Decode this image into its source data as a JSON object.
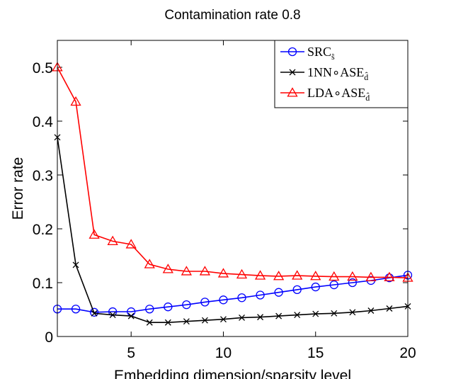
{
  "chart_data": {
    "type": "line",
    "title": "Contamination rate 0.8",
    "xlabel": "Embedding dimension/sparsity level",
    "ylabel": "Error rate",
    "xlim": [
      1,
      20
    ],
    "ylim": [
      0,
      0.55
    ],
    "xticks": [
      5,
      10,
      15,
      20
    ],
    "yticks": [
      0,
      0.1,
      0.2,
      0.3,
      0.4,
      0.5
    ],
    "xtick_labels": [
      "5",
      "10",
      "15",
      "20"
    ],
    "ytick_labels": [
      "0",
      "0.1",
      "0.2",
      "0.3",
      "0.4",
      "0.5"
    ],
    "grid": false,
    "legend_position": "top-right",
    "x": [
      1,
      2,
      3,
      4,
      5,
      6,
      7,
      8,
      9,
      10,
      11,
      12,
      13,
      14,
      15,
      16,
      17,
      18,
      19,
      20
    ],
    "series": [
      {
        "name": "SRC",
        "name_sub": "ŝ",
        "color": "#0000ff",
        "marker": "circle",
        "values": [
          0.051,
          0.051,
          0.045,
          0.046,
          0.046,
          0.051,
          0.055,
          0.059,
          0.064,
          0.068,
          0.072,
          0.077,
          0.082,
          0.087,
          0.092,
          0.096,
          0.1,
          0.104,
          0.109,
          0.114
        ]
      },
      {
        "name": "1NN∘ASE",
        "name_sub": "d̂",
        "color": "#000000",
        "marker": "x",
        "values": [
          0.37,
          0.133,
          0.043,
          0.04,
          0.038,
          0.026,
          0.026,
          0.028,
          0.03,
          0.032,
          0.035,
          0.036,
          0.038,
          0.04,
          0.042,
          0.043,
          0.045,
          0.048,
          0.052,
          0.056
        ]
      },
      {
        "name": "LDA∘ASE",
        "name_sub": "d̂",
        "color": "#ff0000",
        "marker": "triangle",
        "values": [
          0.5,
          0.436,
          0.189,
          0.177,
          0.171,
          0.134,
          0.125,
          0.121,
          0.121,
          0.117,
          0.115,
          0.113,
          0.112,
          0.113,
          0.112,
          0.111,
          0.111,
          0.11,
          0.11,
          0.109
        ]
      }
    ]
  }
}
